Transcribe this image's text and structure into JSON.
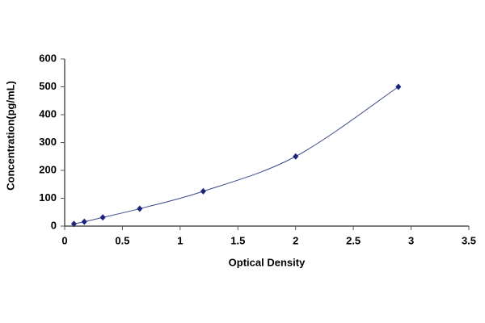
{
  "chart_data": {
    "type": "scatter",
    "x_label": "Optical Density",
    "y_label": "Concentration(pg/mL)",
    "x": [
      0.08,
      0.17,
      0.33,
      0.65,
      1.2,
      2.0,
      2.89
    ],
    "values": [
      7.8,
      15.6,
      31.2,
      62.5,
      125,
      250,
      500
    ],
    "color": "#1a237e",
    "line": "smooth",
    "line_color": "#3a4a8a",
    "xlim": [
      0,
      3.5
    ],
    "xticks": [
      0,
      0.5,
      1,
      1.5,
      2,
      2.5,
      3,
      3.5
    ],
    "ylim": [
      0,
      600
    ],
    "yticks": [
      0,
      100,
      200,
      300,
      400,
      500,
      600
    ]
  }
}
